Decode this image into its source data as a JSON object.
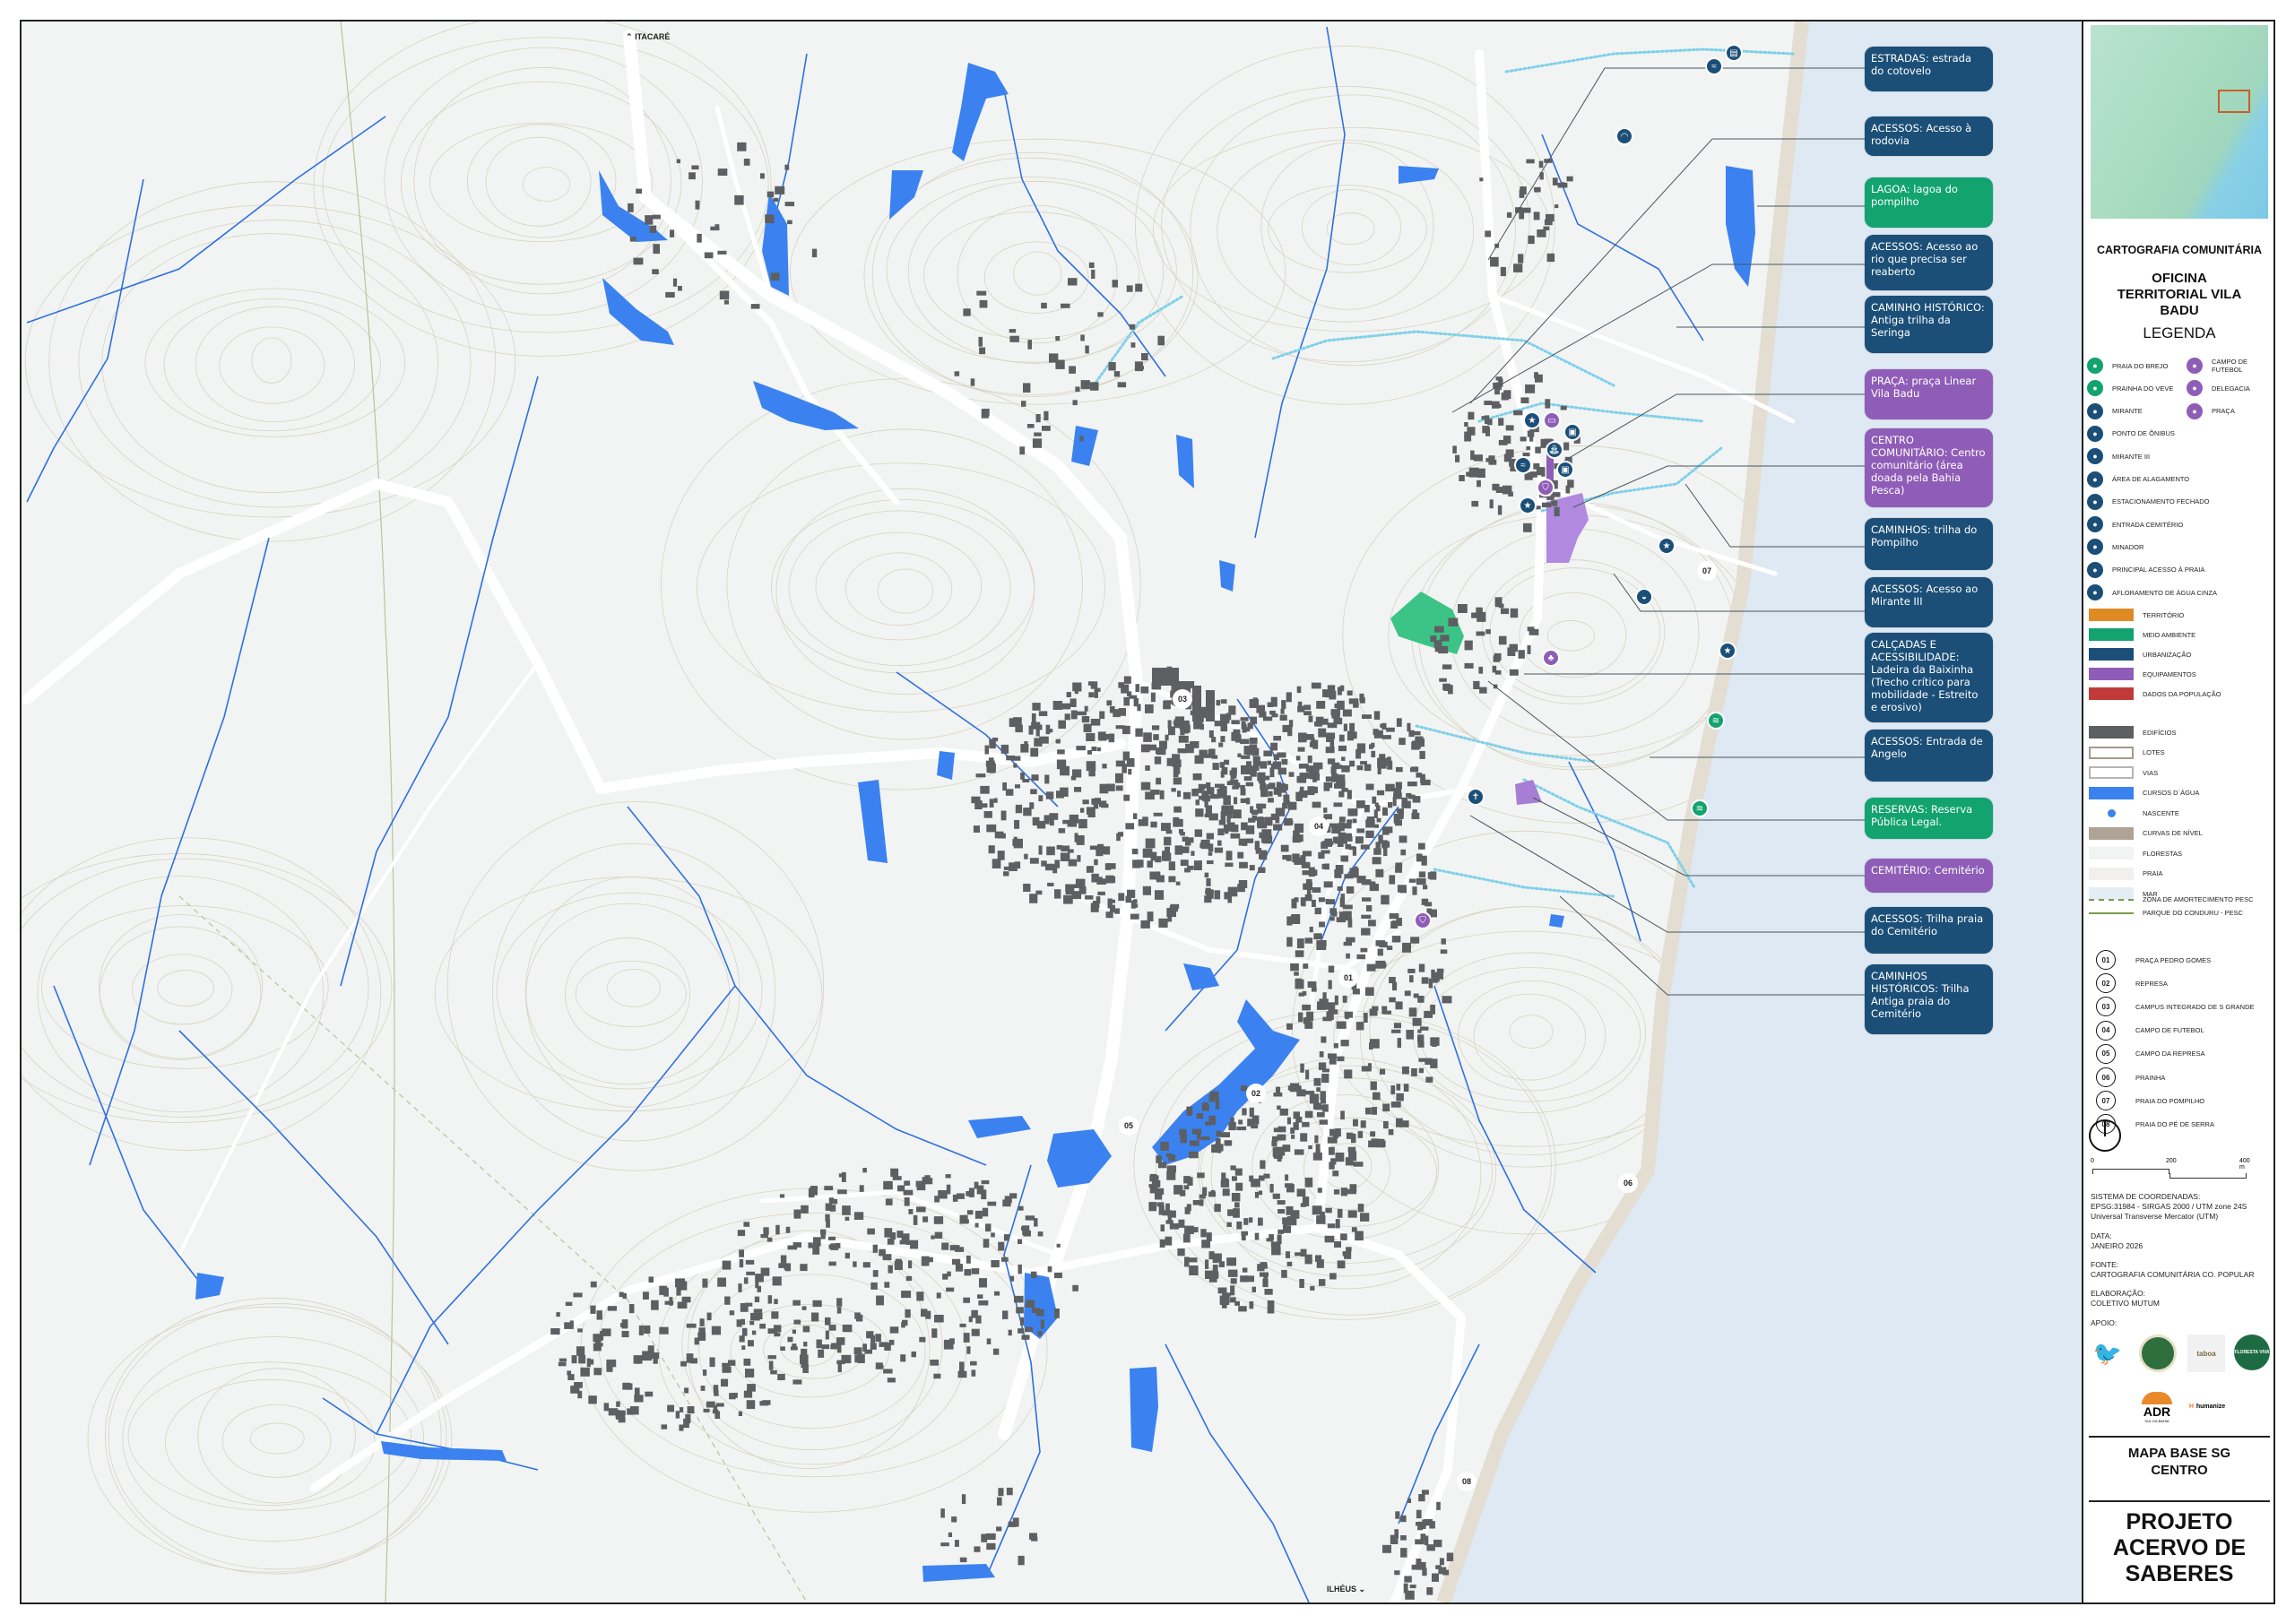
{
  "map": {
    "direction_labels": {
      "north": "ITACARÉ",
      "south": "ILHÉUS"
    },
    "colors": {
      "background": "#f1f4f2",
      "sea": "#dfe9f3",
      "beach": "#e6e1d8",
      "roads": "#ffffff",
      "water": "#3b82f0",
      "stream_light": "#7fd0ea",
      "buildings": "#5d5f62",
      "contours": "#d9d2c3",
      "reserve": "#3cc487",
      "equipment": "#9a6cc7"
    },
    "place_numbers": [
      "01",
      "02",
      "03",
      "04",
      "05",
      "06",
      "07",
      "08"
    ],
    "callouts": [
      {
        "text": "ESTRADAS: estrada do cotovelo",
        "category": "urbanizacao"
      },
      {
        "text": "ACESSOS: Acesso à rodovia",
        "category": "urbanizacao"
      },
      {
        "text": "LAGOA: lagoa do pompilho",
        "category": "meio_ambiente"
      },
      {
        "text": "ACESSOS: Acesso ao rio que precisa ser reaberto",
        "category": "urbanizacao"
      },
      {
        "text": "CAMINHO HISTÓRICO: Antiga trilha da Seringa",
        "category": "urbanizacao"
      },
      {
        "text": "PRAÇA: praça Linear Vila Badu",
        "category": "equipamentos"
      },
      {
        "text": "CENTRO COMUNITÁRIO: Centro comunitário (área doada pela Bahia Pesca)",
        "category": "equipamentos"
      },
      {
        "text": "CAMINHOS: trilha do Pompilho",
        "category": "urbanizacao"
      },
      {
        "text": "ACESSOS: Acesso ao Mirante III",
        "category": "urbanizacao"
      },
      {
        "text": "CALÇADAS E ACESSIBILIDADE: Ladeira da Baixinha (Trecho crítico para mobilidade - Estreito e erosivo)",
        "category": "urbanizacao"
      },
      {
        "text": "ACESSOS: Entrada de Angelo",
        "category": "urbanizacao"
      },
      {
        "text": "RESERVAS: Reserva Pública Legal.",
        "category": "meio_ambiente"
      },
      {
        "text": "CEMITÉRIO: Cemitério",
        "category": "equipamentos"
      },
      {
        "text": "ACESSOS: Trilha praia do Cemitério",
        "category": "urbanizacao"
      },
      {
        "text": "CAMINHOS HISTÓRICOS: Trilha Antiga praia do Cemitério",
        "category": "urbanizacao"
      }
    ],
    "category_colors": {
      "urbanizacao": "#1b4f78",
      "meio_ambiente": "#12a36f",
      "equipamentos": "#8f5db7"
    }
  },
  "sidebar": {
    "header": "CARTOGRAFIA COMUNITÁRIA",
    "title": "OFICINA TERRITORIAL VILA BADU",
    "legend_title": "LEGENDA",
    "icon_legend_left": [
      {
        "label": "PRAIA DO BREJO",
        "color": "#12a36f",
        "icon": "beach-icon"
      },
      {
        "label": "PRAINHA DO VEVE",
        "color": "#12a36f",
        "icon": "small-beach-icon"
      },
      {
        "label": "MIRANTE",
        "color": "#1b4f78",
        "icon": "viewpoint-icon"
      },
      {
        "label": "PONTO DE ÔNIBUS",
        "color": "#1b4f78",
        "icon": "bus-stop-icon"
      },
      {
        "label": "MIRANTE III",
        "color": "#1b4f78",
        "icon": "viewpoint-iii-icon"
      },
      {
        "label": "ÁREA DE ALAGAMENTO",
        "color": "#1b4f78",
        "icon": "flood-icon"
      },
      {
        "label": "ESTACIONAMENTO FECHADO",
        "color": "#1b4f78",
        "icon": "parking-icon"
      },
      {
        "label": "ENTRADA CEMITÉRIO",
        "color": "#1b4f78",
        "icon": "cemetery-icon"
      },
      {
        "label": "MINADOR",
        "color": "#1b4f78",
        "icon": "spring-star-icon"
      },
      {
        "label": "PRINCIPAL ACESSO À PRAIA",
        "color": "#1b4f78",
        "icon": "beach-access-icon"
      },
      {
        "label": "AFLORAMENTO DE ÁGUA CINZA",
        "color": "#1b4f78",
        "icon": "greywater-icon"
      }
    ],
    "icon_legend_right": [
      {
        "label": "CAMPO DE FUTEBOL",
        "color": "#8f5db7",
        "icon": "soccer-field-icon"
      },
      {
        "label": "DELEGACIA",
        "color": "#8f5db7",
        "icon": "police-icon"
      },
      {
        "label": "PRAÇA",
        "color": "#8f5db7",
        "icon": "square-icon"
      }
    ],
    "category_legend": [
      {
        "label": "TERRITÓRIO",
        "color": "#e08a24"
      },
      {
        "label": "MEIO AMBIENTE",
        "color": "#12a36f"
      },
      {
        "label": "URBANIZAÇÃO",
        "color": "#1b4f78"
      },
      {
        "label": "EQUIPAMENTOS",
        "color": "#8f5db7"
      },
      {
        "label": "DADOS DA POPULAÇÃO",
        "color": "#c03a3a"
      }
    ],
    "layer_legend": [
      {
        "label": "EDIFÍCIOS",
        "kind": "fill",
        "color": "#5d5f62"
      },
      {
        "label": "LOTES",
        "kind": "outline",
        "color": "#a39a8c"
      },
      {
        "label": "VIAS",
        "kind": "outline",
        "color": "#b5b5b5"
      },
      {
        "label": "CURSOS D´ÁGUA",
        "kind": "fill",
        "color": "#3b82f0"
      },
      {
        "label": "NASCENTE",
        "kind": "dot",
        "color": "#3b82f0"
      },
      {
        "label": "CURVAS DE NÍVEL",
        "kind": "fill",
        "color": "#aea395"
      },
      {
        "label": "FLORESTAS",
        "kind": "fill",
        "color": "#f1f4f2"
      },
      {
        "label": "PRAIA",
        "kind": "fill",
        "color": "#f2f0ec"
      },
      {
        "label": "MAR",
        "kind": "fill",
        "color": "#e4edf5"
      },
      {
        "label": "ZONA DE AMORTECIMENTO PESC",
        "kind": "dash",
        "color": "#7a9a4a"
      },
      {
        "label": "PARQUE DO CONDURU - PESC",
        "kind": "line",
        "color": "#7a9a4a"
      }
    ],
    "places": [
      {
        "num": "01",
        "label": "PRAÇA PEDRO GOMES"
      },
      {
        "num": "02",
        "label": "REPRESA"
      },
      {
        "num": "03",
        "label": "CAMPUS INTEGRADO DE S GRANDE"
      },
      {
        "num": "04",
        "label": "CAMPO DE FUTEBOL"
      },
      {
        "num": "05",
        "label": "CAMPO DA REPRESA"
      },
      {
        "num": "06",
        "label": "PRAINHA"
      },
      {
        "num": "07",
        "label": "PRAIA DO POMPILHO"
      },
      {
        "num": "08",
        "label": "PRAIA DO PÉ DE SERRA"
      }
    ],
    "scale": {
      "ticks": [
        "0",
        "200",
        "400 m"
      ]
    },
    "coords_label": "SISTEMA DE COORDENADAS:",
    "coords_value1": "EPSG:31984 - SIRGAS 2000 / UTM zone 24S",
    "coords_value2": "Universal Transverse Mercator (UTM)",
    "date_label": "DATA:",
    "date_value": "JANEIRO 2026",
    "source_label": "FONTE:",
    "source_value": "CARTOGRAFIA COMUNITÁRIA CO. POPULAR",
    "author_label": "ELABORAÇÃO:",
    "author_value": "COLETIVO MUTUM",
    "support_label": "APOIO:",
    "logos": [
      "taboa",
      "FLORESTA VIVA",
      "ADR",
      "SUL DA BAHIA",
      "humanize"
    ],
    "map_title": "MAPA BASE SG CENTRO",
    "project_title": "PROJETO ACERVO DE SABERES"
  }
}
